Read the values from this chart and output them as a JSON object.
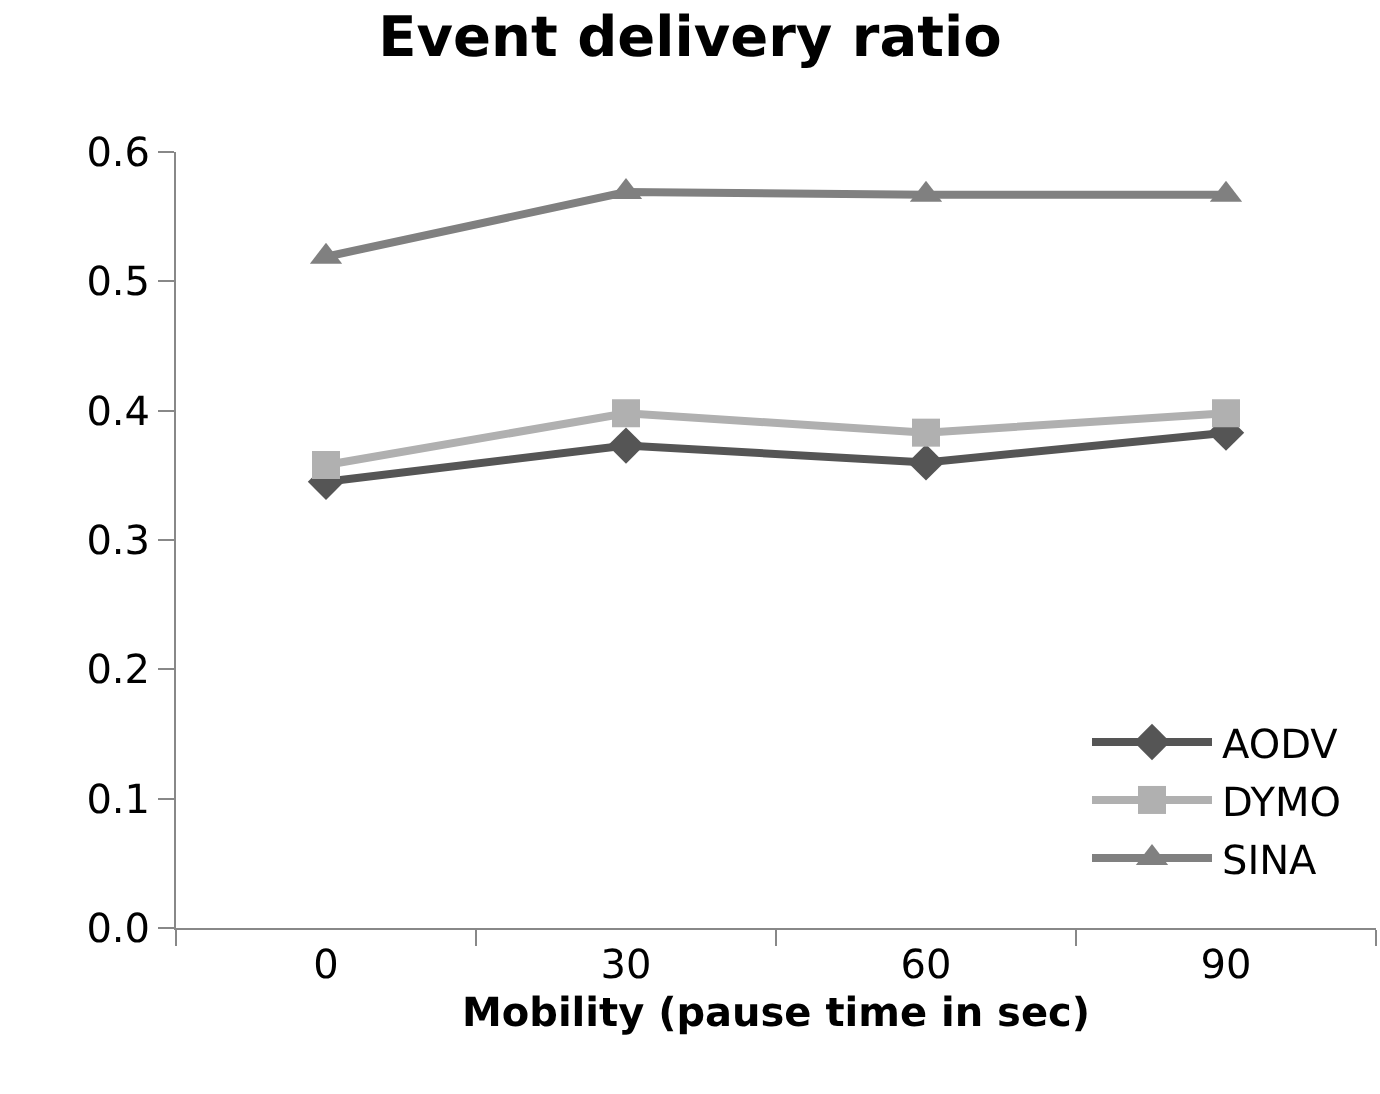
{
  "chart_data": {
    "type": "line",
    "title": "Event delivery ratio",
    "xlabel": "Mobility (pause time in sec)",
    "categories": [
      "0",
      "30",
      "60",
      "90"
    ],
    "series": [
      {
        "name": "AODV",
        "color": "#555555",
        "marker": "diamond",
        "values": [
          0.345,
          0.373,
          0.36,
          0.383
        ]
      },
      {
        "name": "DYMO",
        "color": "#b0b0b0",
        "marker": "square",
        "values": [
          0.358,
          0.398,
          0.383,
          0.398
        ]
      },
      {
        "name": "SINA",
        "color": "#808080",
        "marker": "triangle",
        "values": [
          0.519,
          0.569,
          0.567,
          0.567
        ]
      }
    ],
    "ylim": [
      0,
      0.6
    ],
    "yticks": [
      {
        "value": 0,
        "label": "0.0"
      },
      0.1,
      0.2,
      0.3,
      0.4,
      0.5,
      0.6
    ],
    "grid": false,
    "legend": "bottom right",
    "line_style": "solid"
  }
}
